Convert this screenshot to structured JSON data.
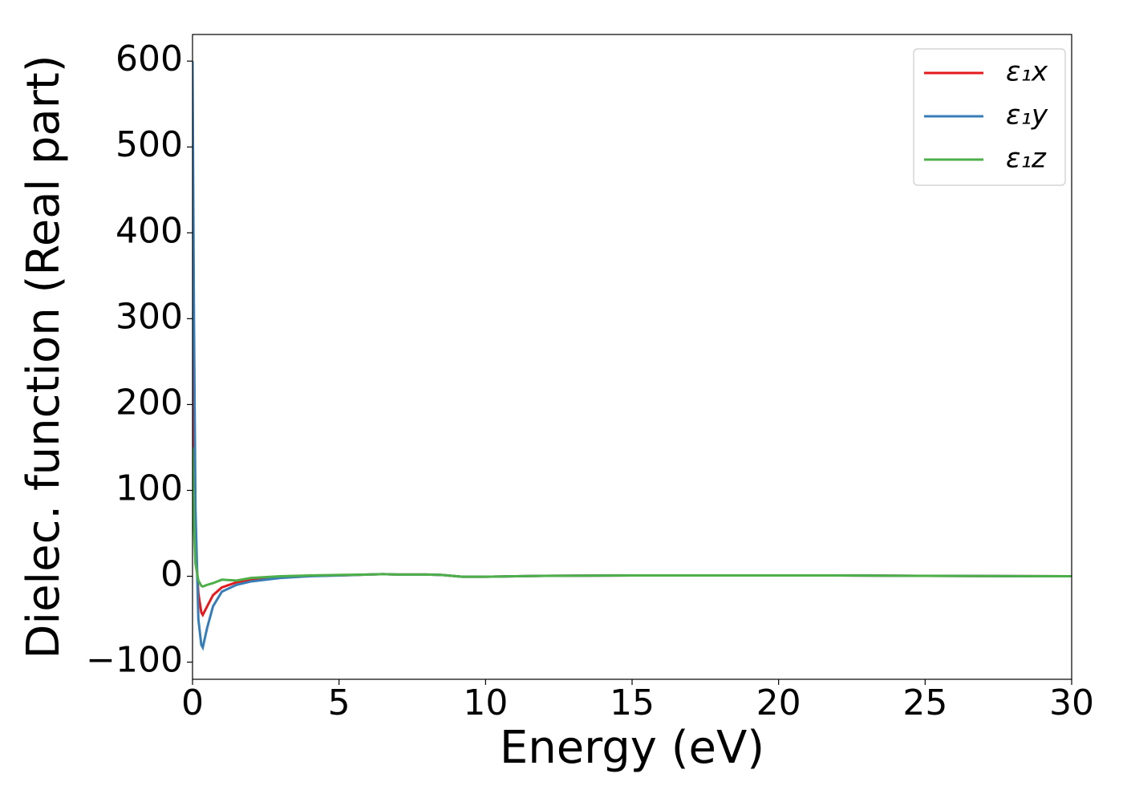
{
  "chart_data": {
    "type": "line",
    "xlabel": "Energy (eV)",
    "ylabel": "Dielec. function (Real part)",
    "x": [
      0,
      0.05,
      0.1,
      0.2,
      0.3,
      0.35,
      0.5,
      0.7,
      1,
      1.5,
      2,
      3,
      4,
      5,
      6,
      6.5,
      7,
      8,
      8.5,
      9.2,
      10,
      12,
      15,
      20,
      22,
      25,
      30
    ],
    "series": [
      {
        "name": "ε₁x",
        "color": "#e41a1c",
        "values": [
          310,
          150,
          40,
          -20,
          -42,
          -45,
          -35,
          -22,
          -13,
          -7,
          -4,
          -1,
          0.5,
          1,
          2,
          2.5,
          2,
          2,
          1.5,
          -0.5,
          -0.5,
          0.5,
          1,
          1,
          1,
          0.5,
          0
        ]
      },
      {
        "name": "ε₁y",
        "color": "#377eb8",
        "values": [
          600,
          300,
          80,
          -50,
          -80,
          -83,
          -60,
          -35,
          -18,
          -10,
          -6,
          -2,
          0,
          1,
          2,
          2.5,
          2,
          2,
          1.5,
          -0.5,
          -0.5,
          0.5,
          1,
          1,
          1,
          0.5,
          0
        ]
      },
      {
        "name": "ε₁z",
        "color": "#4daf4a",
        "values": [
          150,
          60,
          15,
          -5,
          -11,
          -12,
          -10,
          -8,
          -4,
          -5,
          -2,
          0,
          1,
          1.5,
          2,
          2.5,
          2,
          2,
          1.5,
          -0.5,
          -0.5,
          0.5,
          1,
          1,
          1,
          0.5,
          0
        ]
      }
    ],
    "xlim": [
      0,
      30
    ],
    "xticks": [
      0,
      5,
      10,
      15,
      20,
      25,
      30
    ],
    "ylim": [
      -120,
      631
    ],
    "yticks": [
      {
        "value": -100,
        "label": "−100"
      },
      0,
      100,
      200,
      300,
      400,
      500,
      600
    ],
    "grid": false,
    "legend": "upper right"
  }
}
